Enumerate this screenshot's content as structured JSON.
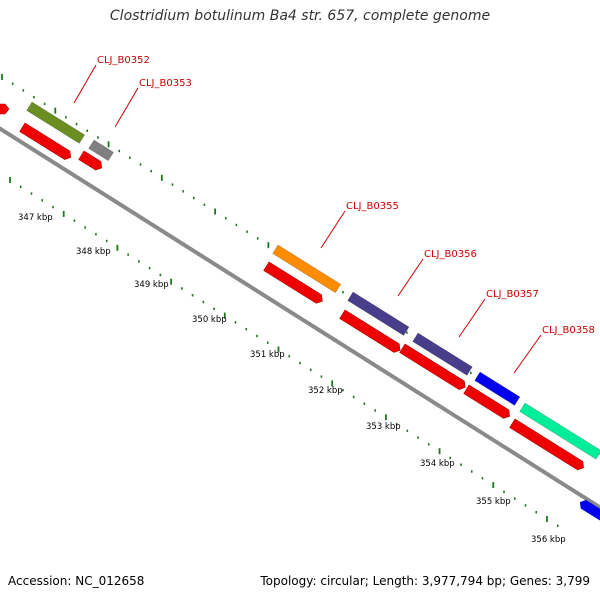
{
  "title": "Clostridium botulinum Ba4 str. 657, complete genome",
  "footer": {
    "accession": "Accession: NC_012658",
    "summary": "Topology: circular; Length: 3,977,794 bp; Genes: 3,799"
  },
  "colors": {
    "backbone": "#8a8a8a",
    "cds_arrow": "#ee0000",
    "tick": "#1a7a1a",
    "label": "#cc0000"
  },
  "position_labels": [
    "347 kbp",
    "348 kbp",
    "349 kbp",
    "350 kbp",
    "351 kbp",
    "352 kbp",
    "353 kbp",
    "354 kbp",
    "355 kbp",
    "356 kbp"
  ],
  "genes": [
    {
      "label": "CLJ_B0352",
      "color": "#6b8e23"
    },
    {
      "label": "CLJ_B0353",
      "color": "#7f7f7f"
    },
    {
      "label": "CLJ_B0355",
      "color": "#ff8c00"
    },
    {
      "label": "CLJ_B0356",
      "color": "#483d8b"
    },
    {
      "label": "CLJ_B0357",
      "color": "#0000ee"
    },
    {
      "label": "CLJ_B0358",
      "color": "#00ee99"
    }
  ]
}
